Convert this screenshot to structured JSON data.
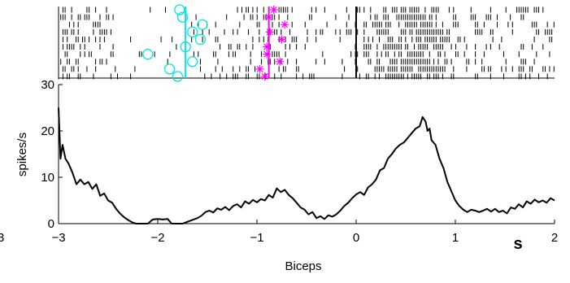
{
  "chart_data": [
    {
      "type": "raster",
      "title": "",
      "xlim": [
        -3,
        2
      ],
      "event_lines": [
        {
          "x": -1.72,
          "color": "#00e5e5"
        },
        {
          "x": -0.88,
          "color": "#ff00ff"
        },
        {
          "x": 0.0,
          "color": "#000000"
        }
      ],
      "cyan_markers": [
        {
          "x": -1.78,
          "trial": 0
        },
        {
          "x": -1.75,
          "trial": 1
        },
        {
          "x": -1.55,
          "trial": 2
        },
        {
          "x": -1.65,
          "trial": 3
        },
        {
          "x": -1.57,
          "trial": 4
        },
        {
          "x": -1.72,
          "trial": 5
        },
        {
          "x": -2.1,
          "trial": 6
        },
        {
          "x": -1.65,
          "trial": 7
        },
        {
          "x": -1.88,
          "trial": 8
        },
        {
          "x": -1.8,
          "trial": 9
        }
      ],
      "magenta_markers": [
        {
          "x": -0.83,
          "trial": 0
        },
        {
          "x": -0.88,
          "trial": 1
        },
        {
          "x": -0.72,
          "trial": 2
        },
        {
          "x": -0.87,
          "trial": 3
        },
        {
          "x": -0.75,
          "trial": 4
        },
        {
          "x": -0.9,
          "trial": 5
        },
        {
          "x": -0.9,
          "trial": 6
        },
        {
          "x": -0.77,
          "trial": 7
        },
        {
          "x": -0.97,
          "trial": 8
        },
        {
          "x": -0.92,
          "trial": 9
        }
      ],
      "trials": 10
    },
    {
      "type": "line",
      "xlabel": "Biceps",
      "ylabel": "spikes/s",
      "unit_label": "s",
      "xlim": [
        -3,
        2
      ],
      "ylim": [
        0,
        30
      ],
      "xticks": [
        "-3",
        "-2",
        "-1",
        "0",
        "1",
        "2"
      ],
      "yticks": [
        "0",
        "10",
        "20",
        "30"
      ],
      "clipped_tick_label": "3",
      "series": [
        {
          "color": "#000000",
          "points": [
            [
              -3.0,
              25.0
            ],
            [
              -2.98,
              14.0
            ],
            [
              -2.96,
              17.0
            ],
            [
              -2.93,
              14.0
            ],
            [
              -2.9,
              13.0
            ],
            [
              -2.86,
              11.0
            ],
            [
              -2.82,
              8.5
            ],
            [
              -2.78,
              9.5
            ],
            [
              -2.74,
              8.5
            ],
            [
              -2.7,
              9.0
            ],
            [
              -2.66,
              7.5
            ],
            [
              -2.62,
              8.5
            ],
            [
              -2.58,
              6.0
            ],
            [
              -2.54,
              6.5
            ],
            [
              -2.5,
              5.0
            ],
            [
              -2.46,
              4.5
            ],
            [
              -2.42,
              3.2
            ],
            [
              -2.38,
              2.2
            ],
            [
              -2.34,
              1.4
            ],
            [
              -2.3,
              0.8
            ],
            [
              -2.26,
              0.3
            ],
            [
              -2.22,
              0.0
            ],
            [
              -2.15,
              0.0
            ],
            [
              -2.1,
              0.0
            ],
            [
              -2.05,
              0.9
            ],
            [
              -2.0,
              1.0
            ],
            [
              -1.95,
              0.9
            ],
            [
              -1.9,
              1.0
            ],
            [
              -1.86,
              0.0
            ],
            [
              -1.8,
              0.0
            ],
            [
              -1.75,
              0.0
            ],
            [
              -1.7,
              0.4
            ],
            [
              -1.65,
              0.8
            ],
            [
              -1.6,
              1.2
            ],
            [
              -1.56,
              1.7
            ],
            [
              -1.52,
              2.5
            ],
            [
              -1.48,
              2.8
            ],
            [
              -1.44,
              2.4
            ],
            [
              -1.4,
              3.3
            ],
            [
              -1.36,
              3.0
            ],
            [
              -1.32,
              3.6
            ],
            [
              -1.28,
              2.9
            ],
            [
              -1.24,
              3.8
            ],
            [
              -1.2,
              4.2
            ],
            [
              -1.16,
              3.5
            ],
            [
              -1.12,
              4.8
            ],
            [
              -1.08,
              4.3
            ],
            [
              -1.04,
              5.1
            ],
            [
              -1.0,
              4.6
            ],
            [
              -0.96,
              5.3
            ],
            [
              -0.92,
              5.0
            ],
            [
              -0.88,
              6.2
            ],
            [
              -0.84,
              5.6
            ],
            [
              -0.8,
              7.6
            ],
            [
              -0.76,
              6.8
            ],
            [
              -0.72,
              7.3
            ],
            [
              -0.68,
              6.2
            ],
            [
              -0.64,
              5.5
            ],
            [
              -0.6,
              4.5
            ],
            [
              -0.56,
              3.5
            ],
            [
              -0.52,
              3.0
            ],
            [
              -0.48,
              2.0
            ],
            [
              -0.44,
              2.5
            ],
            [
              -0.4,
              1.2
            ],
            [
              -0.36,
              1.6
            ],
            [
              -0.32,
              1.0
            ],
            [
              -0.28,
              1.8
            ],
            [
              -0.24,
              1.5
            ],
            [
              -0.2,
              2.0
            ],
            [
              -0.16,
              2.8
            ],
            [
              -0.12,
              3.8
            ],
            [
              -0.08,
              4.5
            ],
            [
              -0.04,
              5.5
            ],
            [
              0.0,
              6.3
            ],
            [
              0.04,
              6.8
            ],
            [
              0.08,
              6.2
            ],
            [
              0.12,
              7.8
            ],
            [
              0.16,
              8.5
            ],
            [
              0.2,
              9.5
            ],
            [
              0.24,
              11.5
            ],
            [
              0.28,
              12.0
            ],
            [
              0.32,
              14.0
            ],
            [
              0.36,
              15.0
            ],
            [
              0.4,
              16.2
            ],
            [
              0.44,
              17.0
            ],
            [
              0.48,
              17.5
            ],
            [
              0.52,
              18.5
            ],
            [
              0.56,
              19.5
            ],
            [
              0.6,
              20.5
            ],
            [
              0.64,
              21.0
            ],
            [
              0.67,
              23.0
            ],
            [
              0.7,
              22.0
            ],
            [
              0.72,
              20.0
            ],
            [
              0.74,
              20.5
            ],
            [
              0.76,
              18.0
            ],
            [
              0.8,
              17.0
            ],
            [
              0.84,
              14.0
            ],
            [
              0.88,
              12.0
            ],
            [
              0.92,
              9.0
            ],
            [
              0.96,
              7.0
            ],
            [
              1.0,
              5.0
            ],
            [
              1.04,
              3.8
            ],
            [
              1.08,
              3.0
            ],
            [
              1.12,
              2.5
            ],
            [
              1.16,
              3.0
            ],
            [
              1.2,
              2.8
            ],
            [
              1.24,
              2.5
            ],
            [
              1.28,
              2.8
            ],
            [
              1.32,
              3.2
            ],
            [
              1.36,
              2.6
            ],
            [
              1.4,
              3.2
            ],
            [
              1.44,
              2.5
            ],
            [
              1.48,
              2.8
            ],
            [
              1.52,
              2.2
            ],
            [
              1.56,
              3.5
            ],
            [
              1.6,
              3.2
            ],
            [
              1.64,
              4.2
            ],
            [
              1.68,
              3.5
            ],
            [
              1.72,
              4.8
            ],
            [
              1.76,
              4.3
            ],
            [
              1.8,
              5.2
            ],
            [
              1.84,
              4.6
            ],
            [
              1.88,
              5.0
            ],
            [
              1.92,
              4.5
            ],
            [
              1.96,
              5.5
            ],
            [
              2.0,
              5.0
            ]
          ]
        }
      ]
    }
  ]
}
